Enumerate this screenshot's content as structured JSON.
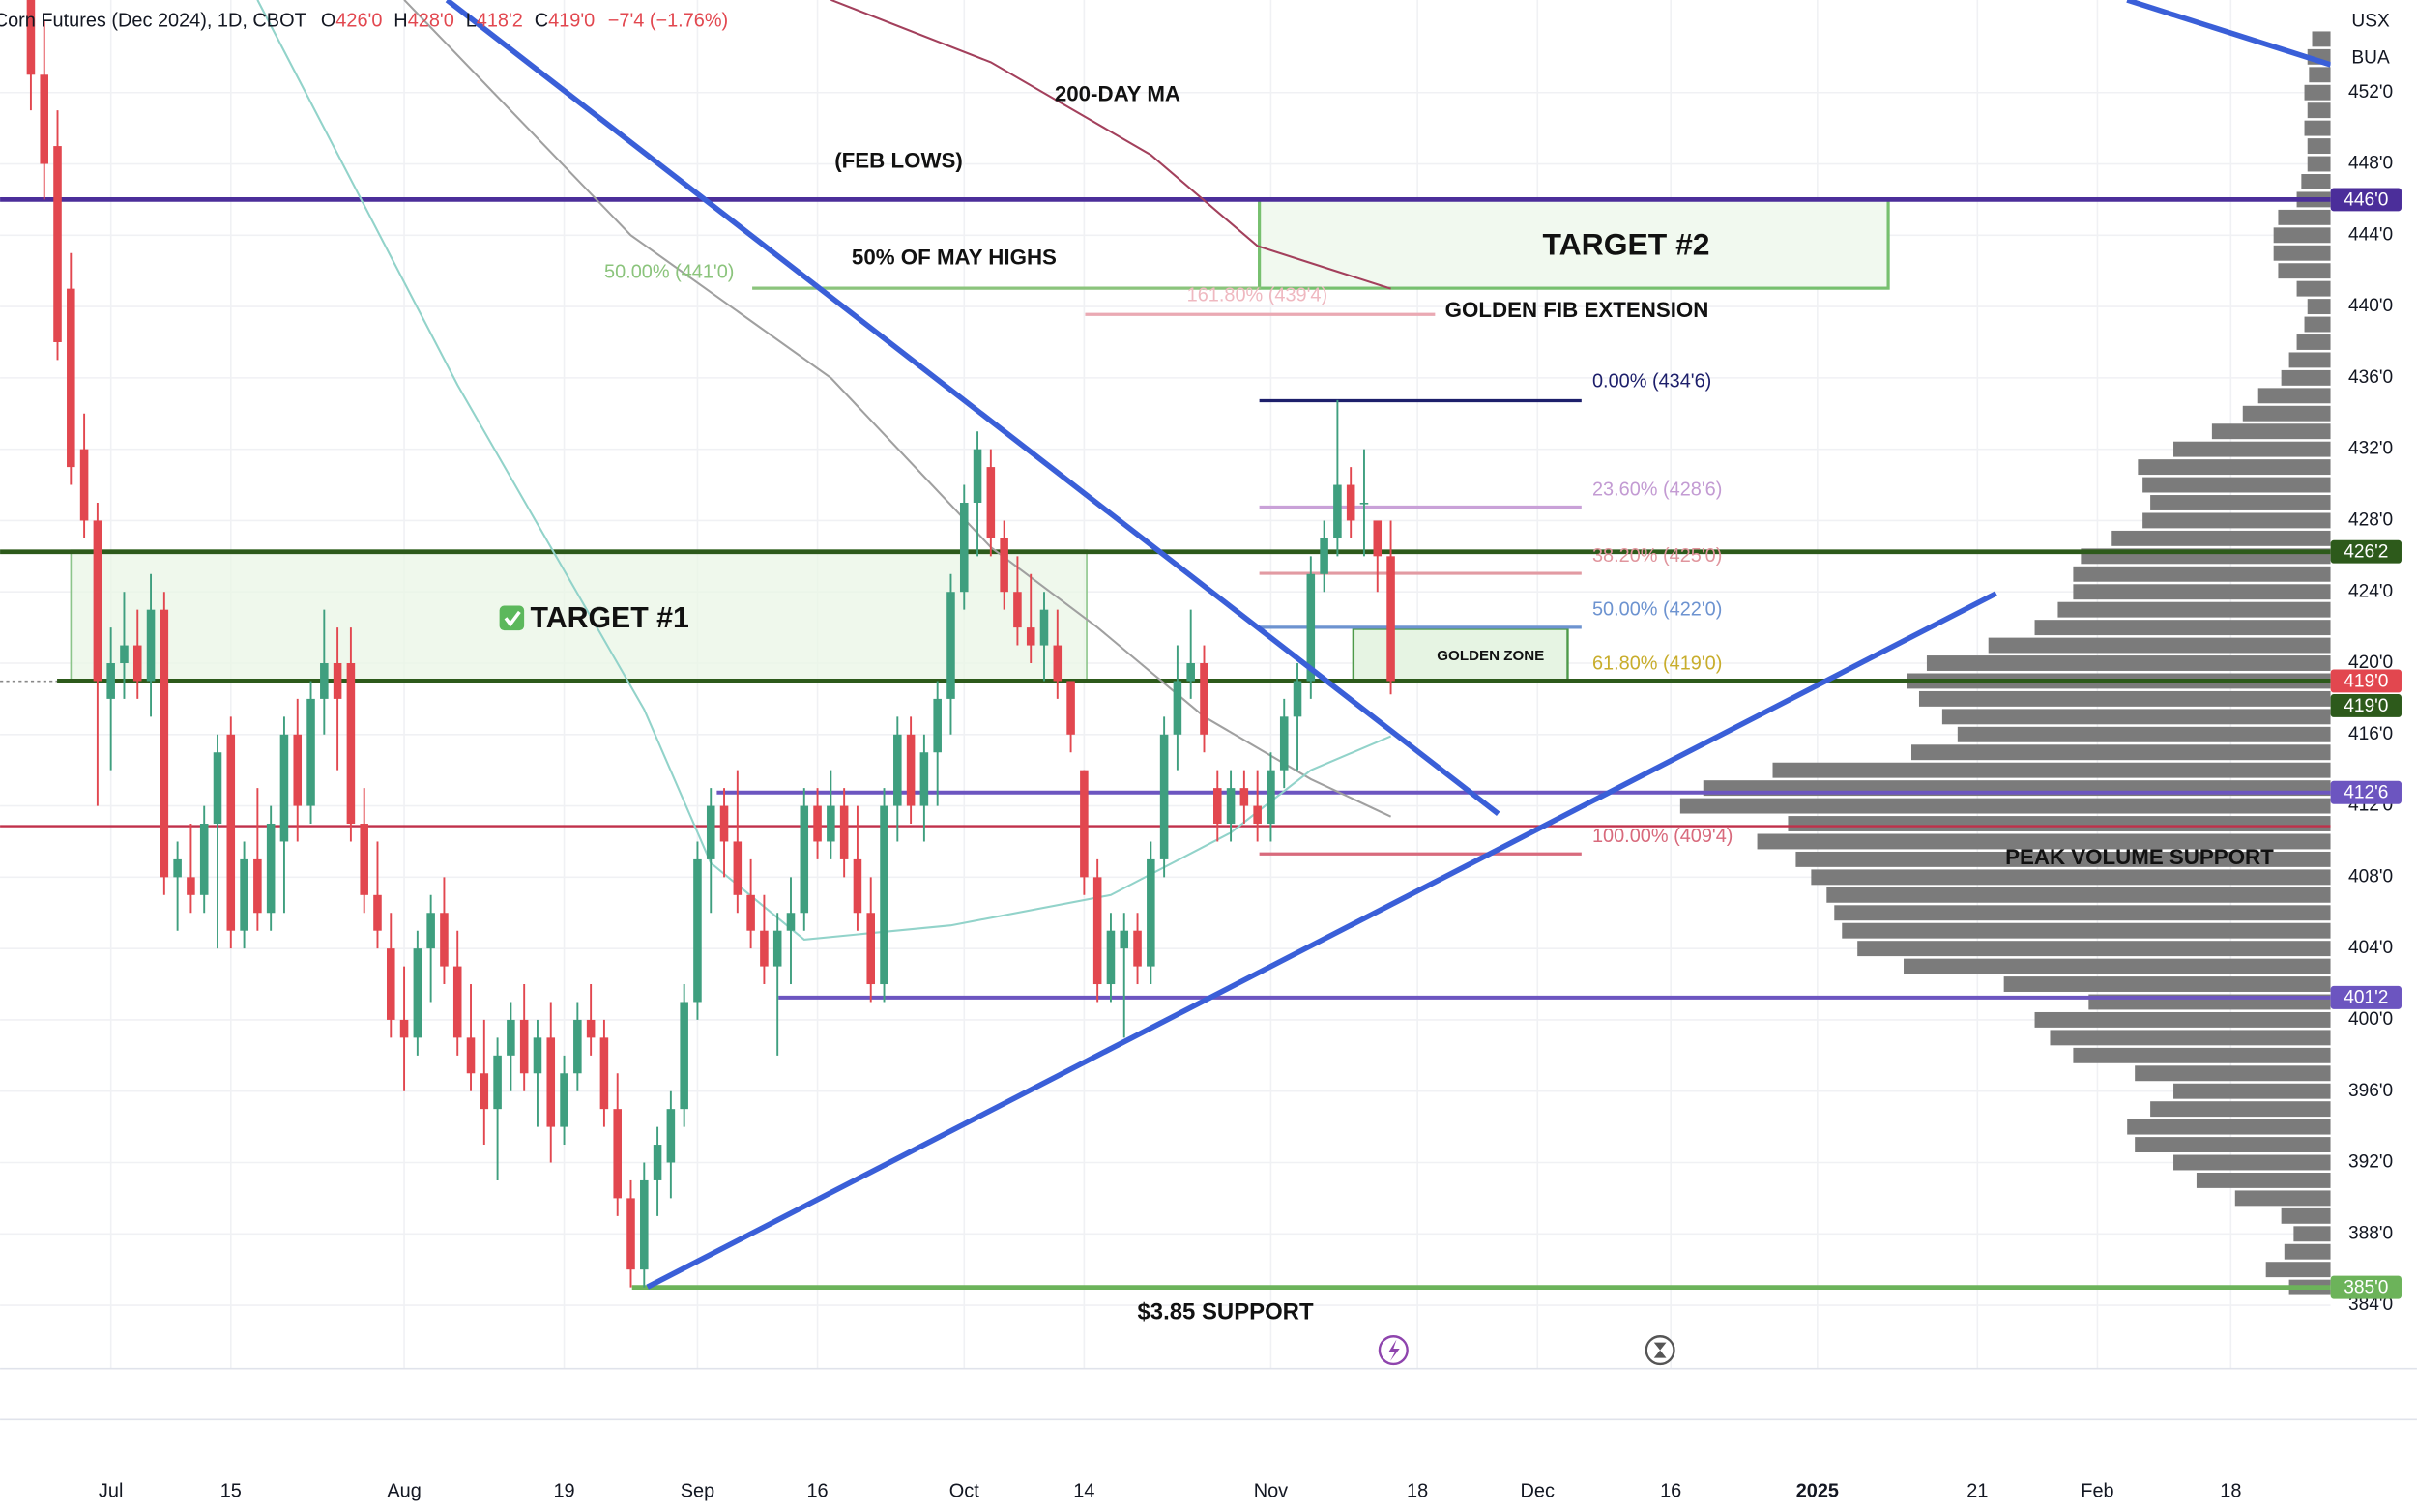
{
  "chart_data": {
    "type": "candlestick",
    "title": "Corn Futures (Dec 2024), 1D, CBOT",
    "ohlc_legend": [
      "O",
      "426'0",
      "H",
      "428'0",
      "L",
      "418'2",
      "C",
      "419'0"
    ],
    "change": "−7'4 (−1.76%)",
    "currency": "USX",
    "unit": "BUA",
    "up_color": "#3f9f7f",
    "down_color": "#e2474f",
    "grid": true,
    "xlim": [
      -2.31,
      172.49
    ],
    "ylim": [
      380.44,
      457.19
    ],
    "yticks": [
      {
        "value": 452,
        "label": "452'0"
      },
      {
        "value": 448,
        "label": "448'0"
      },
      {
        "value": 444,
        "label": "444'0"
      },
      {
        "value": 440,
        "label": "440'0"
      },
      {
        "value": 436,
        "label": "436'0"
      },
      {
        "value": 432,
        "label": "432'0"
      },
      {
        "value": 428,
        "label": "428'0"
      },
      {
        "value": 424,
        "label": "424'0"
      },
      {
        "value": 420,
        "label": "420'0"
      },
      {
        "value": 416,
        "label": "416'0"
      },
      {
        "value": 412,
        "label": "412'0"
      },
      {
        "value": 408,
        "label": "408'0"
      },
      {
        "value": 404,
        "label": "404'0"
      },
      {
        "value": 400,
        "label": "400'0"
      },
      {
        "value": 396,
        "label": "396'0"
      },
      {
        "value": 392,
        "label": "392'0"
      },
      {
        "value": 388,
        "label": "388'0"
      },
      {
        "value": 384,
        "label": "384'0"
      }
    ],
    "xticks": [
      {
        "value": 6,
        "label": "Jul"
      },
      {
        "value": 15,
        "label": "15"
      },
      {
        "value": 28,
        "label": "Aug"
      },
      {
        "value": 40,
        "label": "19"
      },
      {
        "value": 50,
        "label": "Sep"
      },
      {
        "value": 59,
        "label": "16"
      },
      {
        "value": 70,
        "label": "Oct"
      },
      {
        "value": 79,
        "label": "14"
      },
      {
        "value": 93,
        "label": "Nov"
      },
      {
        "value": 104,
        "label": "18"
      },
      {
        "value": 113,
        "label": "Dec"
      },
      {
        "value": 123,
        "label": "16"
      },
      {
        "value": 134,
        "label": "2025"
      },
      {
        "value": 146,
        "label": "21"
      },
      {
        "value": 155,
        "label": "Feb"
      },
      {
        "value": 165,
        "label": "18"
      }
    ],
    "open": [
      458,
      453,
      449,
      441,
      432,
      428,
      418,
      420,
      421,
      419,
      423,
      408,
      408,
      407,
      411,
      416,
      405,
      409,
      406,
      410,
      416,
      412,
      418,
      420,
      420,
      411,
      407,
      404,
      400,
      399,
      404,
      406,
      403,
      399,
      397,
      395,
      398,
      400,
      397,
      399,
      394,
      397,
      400,
      399,
      395,
      390,
      386,
      391,
      392,
      395,
      401,
      409,
      412,
      410,
      407,
      405,
      403,
      405,
      406,
      412,
      410,
      412,
      409,
      406,
      402,
      412,
      416,
      412,
      415,
      418,
      424,
      429,
      431,
      427,
      424,
      422,
      421,
      421,
      419,
      414,
      408,
      402,
      404,
      405,
      403,
      409,
      416,
      419,
      420,
      413,
      411,
      413,
      412,
      411,
      414,
      417,
      419,
      425,
      427,
      430,
      429,
      428,
      426
    ],
    "high": [
      459,
      456,
      451,
      443,
      434,
      429,
      422,
      424,
      423,
      425,
      424,
      410,
      411,
      412,
      416,
      417,
      410,
      413,
      412,
      417,
      418,
      419,
      423,
      422,
      422,
      413,
      410,
      406,
      403,
      405,
      407,
      408,
      405,
      402,
      400,
      399,
      401,
      402,
      400,
      401,
      398,
      401,
      402,
      400,
      397,
      391,
      392,
      394,
      396,
      402,
      410,
      413,
      413,
      414,
      409,
      407,
      406,
      408,
      413,
      413,
      414,
      413,
      412,
      408,
      413,
      417,
      417,
      416,
      419,
      425,
      430,
      433,
      432,
      428,
      426,
      425,
      424,
      423,
      419,
      414,
      409,
      406,
      406,
      406,
      410,
      417,
      421,
      423,
      421,
      414,
      414,
      414,
      414,
      415,
      418,
      420,
      426,
      428,
      434.75,
      431,
      432,
      428,
      428
    ],
    "low": [
      451,
      446,
      437,
      430,
      427,
      412,
      414,
      418,
      418,
      417,
      407,
      405,
      406,
      406,
      404,
      404,
      404,
      405,
      405,
      406,
      410,
      411,
      416,
      414,
      410,
      406,
      404,
      399,
      396,
      398,
      401,
      402,
      398,
      396,
      393,
      391,
      396,
      396,
      394,
      392,
      393,
      396,
      398,
      394,
      389,
      385,
      385,
      389,
      390,
      394,
      400,
      406,
      408,
      406,
      404,
      402,
      398,
      402,
      405,
      409,
      409,
      408,
      405,
      401,
      401,
      410,
      411,
      410,
      412,
      416,
      423,
      426,
      426,
      423,
      421,
      420,
      419,
      418,
      415,
      407,
      401,
      401,
      399,
      402,
      402,
      408,
      414,
      418,
      415,
      410,
      410,
      411,
      410,
      410,
      413,
      414,
      418,
      424,
      426,
      427,
      426,
      424,
      418.25
    ],
    "close": [
      453,
      448,
      438,
      431,
      428,
      419,
      420,
      421,
      419,
      423,
      408,
      409,
      407,
      411,
      415,
      405,
      409,
      406,
      411,
      416,
      412,
      418,
      420,
      418,
      411,
      407,
      405,
      400,
      399,
      404,
      406,
      403,
      399,
      397,
      395,
      398,
      400,
      397,
      399,
      394,
      397,
      400,
      399,
      395,
      390,
      386,
      391,
      393,
      395,
      401,
      409,
      412,
      410,
      407,
      405,
      403,
      405,
      406,
      412,
      410,
      412,
      409,
      406,
      402,
      412,
      416,
      412,
      415,
      418,
      424,
      429,
      432,
      427,
      424,
      422,
      421,
      423,
      419,
      416,
      408,
      402,
      405,
      405,
      403,
      409,
      416,
      419,
      420,
      416,
      411,
      413,
      412,
      411,
      414,
      417,
      419,
      425,
      427,
      430,
      428,
      429,
      426,
      419
    ],
    "moving_averages": [
      {
        "color": "#a3405c",
        "x": [
          60,
          72,
          84,
          92,
          102
        ],
        "values": [
          457.2,
          453.7,
          448.5,
          443.4,
          441
        ]
      },
      {
        "color": "#a0a0a0",
        "x": [
          28,
          45,
          60,
          72,
          80,
          88,
          96,
          102
        ],
        "values": [
          457.2,
          444,
          436,
          426.5,
          422,
          417,
          413.5,
          411.4
        ]
      },
      {
        "color": "#92d3ca",
        "x": [
          17,
          32,
          46,
          51,
          58,
          69,
          81,
          90,
          96,
          102
        ],
        "values": [
          457.2,
          435.6,
          417.4,
          408.8,
          404.5,
          405.3,
          407,
          410.5,
          414,
          415.9
        ]
      }
    ],
    "volume_profile": {
      "color": "#7b7b7b",
      "prices": [
        455,
        454,
        453,
        452,
        451,
        450,
        449,
        448,
        447,
        446,
        445,
        444,
        443,
        442,
        441,
        440,
        439,
        438,
        437,
        436,
        435,
        434,
        433,
        432,
        431,
        430,
        429,
        428,
        427,
        426,
        425,
        424,
        423,
        422,
        421,
        420,
        419,
        418,
        417,
        416,
        415,
        414,
        413,
        412,
        411,
        410,
        409,
        408,
        407,
        406,
        405,
        404,
        403,
        402,
        401,
        400,
        399,
        398,
        397,
        396,
        395,
        394,
        393,
        392,
        391,
        390,
        389,
        388,
        387,
        386,
        385
      ],
      "volumes": [
        12,
        15,
        14,
        17,
        15,
        17,
        15,
        15,
        19,
        22,
        34,
        37,
        37,
        34,
        22,
        15,
        17,
        22,
        27,
        32,
        47,
        57,
        77,
        102,
        125,
        122,
        117,
        122,
        142,
        162,
        167,
        167,
        177,
        192,
        222,
        262,
        275,
        267,
        252,
        242,
        272,
        362,
        407,
        422,
        352,
        372,
        347,
        337,
        327,
        322,
        317,
        307,
        277,
        212,
        157,
        192,
        182,
        167,
        127,
        102,
        117,
        132,
        127,
        102,
        87,
        62,
        32,
        24,
        30,
        42,
        27
      ]
    },
    "price_tags": [
      {
        "value": 446,
        "label": "446'0",
        "color": "#4b2e9a"
      },
      {
        "value": 426.25,
        "label": "426'2",
        "color": "#2d5a1b"
      },
      {
        "value": 419,
        "label": "419'0",
        "color": "#e2474f"
      },
      {
        "value": 419,
        "label": "419'0",
        "color": "#2d5a1b"
      },
      {
        "value": 412.75,
        "label": "412'6",
        "color": "#6c55c0"
      },
      {
        "value": 401.25,
        "label": "401'2",
        "color": "#6c55c0"
      },
      {
        "value": 385,
        "label": "385'0",
        "color": "#6cb35a"
      }
    ],
    "annotations": {
      "ma200": "200-DAY MA",
      "feb_lows": "(FEB LOWS)",
      "may_highs": "50% OF MAY HIGHS",
      "target_2": "TARGET #2",
      "golden_fib": "GOLDEN FIB EXTENSION",
      "target_1": "TARGET #1",
      "golden_zone": "GOLDEN ZONE",
      "peak_volume": "PEAK VOLUME SUPPORT",
      "support": "$3.85 SUPPORT"
    },
    "fib_labels": {
      "f0": "0.00% (434'6)",
      "f236": "23.60% (428'6)",
      "f382": "38.20% (425'0)",
      "f50": "50.00% (422'0)",
      "f618": "61.80% (419'0)",
      "f100": "100.00% (409'4)",
      "f1618": "161.80% (439'4)",
      "may50": "50.00% (441'0)"
    }
  }
}
